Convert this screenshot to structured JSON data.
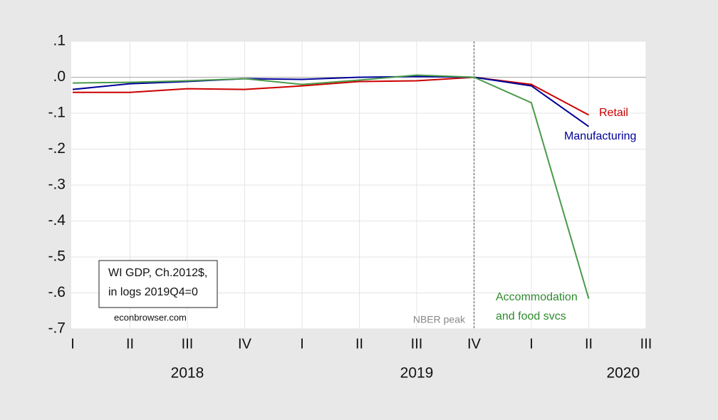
{
  "chart_data": {
    "type": "line",
    "categories": [
      "I",
      "II",
      "III",
      "IV",
      "I",
      "II",
      "III",
      "IV",
      "I",
      "II",
      "III"
    ],
    "year_labels": [
      "2018",
      "2019",
      "2020"
    ],
    "series": [
      {
        "name": "Retail",
        "color": "#cc0000",
        "values": [
          -0.042,
          -0.042,
          -0.032,
          -0.034,
          -0.024,
          -0.012,
          -0.01,
          0,
          -0.02,
          -0.105,
          null
        ]
      },
      {
        "name": "Manufacturing",
        "color": "#000099",
        "values": [
          -0.034,
          -0.018,
          -0.012,
          -0.004,
          -0.006,
          0,
          0.002,
          0,
          -0.024,
          -0.137,
          null
        ]
      },
      {
        "name": "Accommodation and food svcs",
        "color": "#4a9a4a",
        "values": [
          -0.016,
          -0.014,
          -0.01,
          -0.004,
          -0.02,
          -0.008,
          0.006,
          0,
          -0.071,
          -0.616,
          null
        ]
      }
    ],
    "annotations": {
      "retail": "Retail",
      "manufacturing": "Manufacturing",
      "accommodation_1": "Accommodation",
      "accommodation_2": "and food svcs",
      "nber": "NBER peak",
      "box_1": "WI GDP, Ch.2012$,",
      "box_2": "in logs 2019Q4=0",
      "source": "econbrowser.com"
    },
    "ylim": [
      -0.7,
      0.1
    ],
    "yticks": [
      {
        "value": 0.1,
        "label": ".1"
      },
      {
        "value": 0,
        "label": ".0"
      },
      {
        "value": -0.1,
        "label": "-.1"
      },
      {
        "value": -0.2,
        "label": "-.2"
      },
      {
        "value": -0.3,
        "label": "-.3"
      },
      {
        "value": -0.4,
        "label": "-.4"
      },
      {
        "value": -0.5,
        "label": "-.5"
      },
      {
        "value": -0.6,
        "label": "-.6"
      },
      {
        "value": -0.7,
        "label": "-.7"
      }
    ],
    "grid": true
  }
}
